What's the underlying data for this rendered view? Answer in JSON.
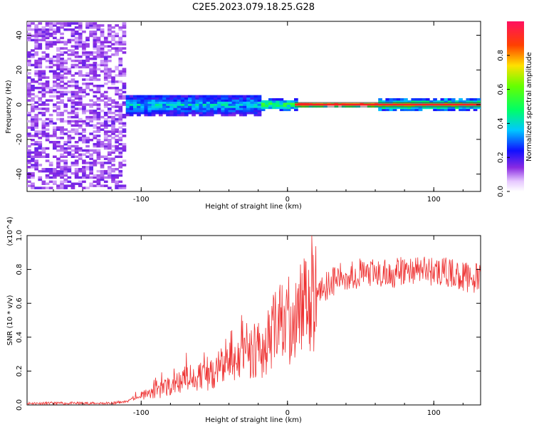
{
  "title": "C2E5.2023.079.18.25.G28",
  "chart_data": [
    {
      "type": "heatmap",
      "panel": "spectrogram",
      "xlabel": "Height of straight line (km)",
      "ylabel": "Frequency (Hz)",
      "xlim": [
        -178,
        132
      ],
      "ylim": [
        -50,
        48
      ],
      "x_ticks": [
        "-100",
        "0",
        "100"
      ],
      "y_ticks": [
        "-40",
        "-20",
        "0",
        "20",
        "40"
      ],
      "colorbar": {
        "label": "Normalized spectral amplitude",
        "range": [
          0,
          1
        ],
        "ticks": [
          "0.0",
          "0.2",
          "0.4",
          "0.6",
          "0.8"
        ]
      },
      "regions": [
        {
          "x": [
            -178,
            -112
          ],
          "freq_spread": 48,
          "amplitude": 0.1
        },
        {
          "x": [
            -112,
            -20
          ],
          "freq_spread": 6,
          "amplitude": 0.4
        },
        {
          "x": [
            -20,
            5
          ],
          "freq_spread": 3,
          "amplitude": 0.55
        },
        {
          "x": [
            5,
            60
          ],
          "freq_spread": 1,
          "amplitude": 0.85
        },
        {
          "x": [
            60,
            132
          ],
          "freq_spread": 3,
          "amplitude": 0.6
        }
      ]
    },
    {
      "type": "line",
      "panel": "snr",
      "xlabel": "Height of straight line (km)",
      "ylabel": "SNR (10 * v/v)",
      "y_multiplier": "(x10^4)",
      "xlim": [
        -178,
        132
      ],
      "ylim": [
        0,
        1.0
      ],
      "x_ticks": [
        "-100",
        "0",
        "100"
      ],
      "y_ticks": [
        "0.0",
        "0.2",
        "0.4",
        "0.6",
        "0.8",
        "1.0"
      ],
      "series": [
        {
          "color": "#ee3333",
          "x": [
            -178,
            -150,
            -120,
            -110,
            -100,
            -90,
            -80,
            -70,
            -60,
            -50,
            -40,
            -30,
            -25,
            -20,
            -15,
            -10,
            -5,
            0,
            5,
            10,
            15,
            20,
            25,
            30,
            40,
            50,
            60,
            70,
            80,
            90,
            100,
            110,
            120,
            132
          ],
          "y": [
            0.01,
            0.01,
            0.01,
            0.02,
            0.05,
            0.08,
            0.11,
            0.15,
            0.17,
            0.2,
            0.24,
            0.28,
            0.32,
            0.35,
            0.3,
            0.42,
            0.46,
            0.5,
            0.54,
            0.58,
            0.6,
            0.66,
            0.7,
            0.73,
            0.76,
            0.78,
            0.77,
            0.77,
            0.79,
            0.8,
            0.79,
            0.78,
            0.76,
            0.74
          ]
        }
      ]
    }
  ]
}
